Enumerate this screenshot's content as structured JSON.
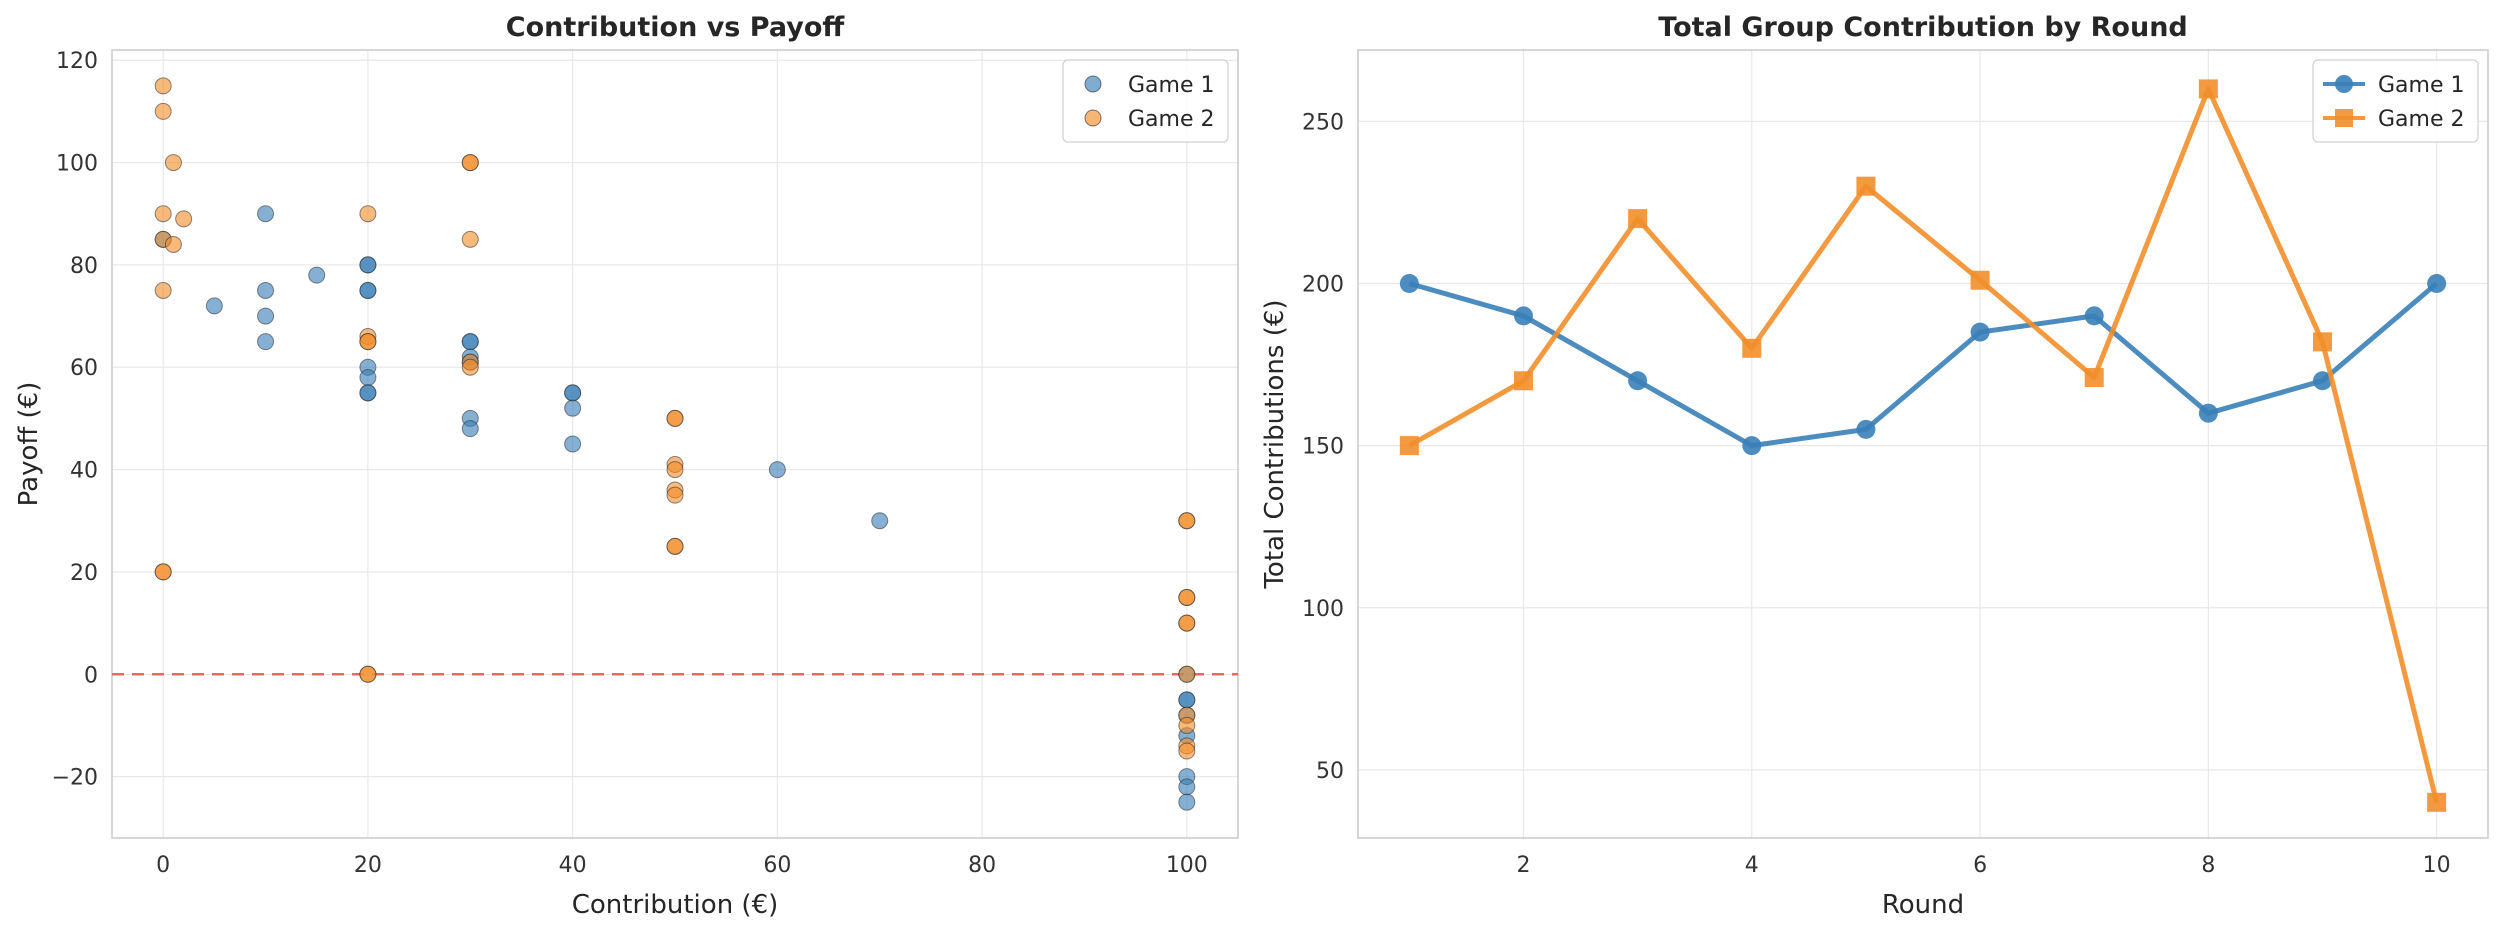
{
  "chart_data": [
    {
      "type": "scatter",
      "title": "Contribution vs Payoff",
      "xlabel": "Contribution (€)",
      "ylabel": "Payoff (€)",
      "xlim": [
        -5,
        105
      ],
      "ylim": [
        -32,
        122
      ],
      "xticks": [
        0,
        20,
        40,
        60,
        80,
        100
      ],
      "yticks": [
        -20,
        0,
        20,
        40,
        60,
        80,
        100,
        120
      ],
      "grid": true,
      "legend_position": "top-right",
      "reference_line": {
        "y": 0,
        "style": "dashed",
        "color": "#e8504a"
      },
      "series": [
        {
          "name": "Game 1",
          "color": "#3a80b8",
          "points": [
            [
              0,
              85
            ],
            [
              5,
              72
            ],
            [
              10,
              90
            ],
            [
              10,
              75
            ],
            [
              10,
              70
            ],
            [
              10,
              65
            ],
            [
              15,
              78
            ],
            [
              20,
              80
            ],
            [
              20,
              80
            ],
            [
              20,
              75
            ],
            [
              20,
              75
            ],
            [
              20,
              60
            ],
            [
              20,
              58
            ],
            [
              20,
              55
            ],
            [
              20,
              55
            ],
            [
              30,
              65
            ],
            [
              30,
              65
            ],
            [
              30,
              62
            ],
            [
              30,
              61
            ],
            [
              30,
              50
            ],
            [
              30,
              48
            ],
            [
              40,
              55
            ],
            [
              40,
              55
            ],
            [
              40,
              52
            ],
            [
              40,
              45
            ],
            [
              60,
              40
            ],
            [
              70,
              30
            ],
            [
              100,
              0
            ],
            [
              100,
              -5
            ],
            [
              100,
              -5
            ],
            [
              100,
              -8
            ],
            [
              100,
              -12
            ],
            [
              100,
              -20
            ],
            [
              100,
              -22
            ],
            [
              100,
              -25
            ]
          ]
        },
        {
          "name": "Game 2",
          "color": "#f28e2b",
          "points": [
            [
              0,
              115
            ],
            [
              0,
              110
            ],
            [
              1,
              100
            ],
            [
              0,
              90
            ],
            [
              2,
              89
            ],
            [
              0,
              85
            ],
            [
              1,
              84
            ],
            [
              0,
              75
            ],
            [
              0,
              20
            ],
            [
              0,
              20
            ],
            [
              20,
              90
            ],
            [
              20,
              66
            ],
            [
              20,
              65
            ],
            [
              20,
              65
            ],
            [
              20,
              0
            ],
            [
              20,
              0
            ],
            [
              30,
              100
            ],
            [
              30,
              100
            ],
            [
              30,
              85
            ],
            [
              30,
              61
            ],
            [
              30,
              60
            ],
            [
              50,
              50
            ],
            [
              50,
              50
            ],
            [
              50,
              41
            ],
            [
              50,
              40
            ],
            [
              50,
              36
            ],
            [
              50,
              35
            ],
            [
              50,
              25
            ],
            [
              50,
              25
            ],
            [
              100,
              30
            ],
            [
              100,
              30
            ],
            [
              100,
              15
            ],
            [
              100,
              15
            ],
            [
              100,
              10
            ],
            [
              100,
              10
            ],
            [
              100,
              0
            ],
            [
              100,
              -8
            ],
            [
              100,
              -10
            ],
            [
              100,
              -14
            ],
            [
              100,
              -15
            ]
          ]
        }
      ]
    },
    {
      "type": "line",
      "title": "Total Group Contribution by Round",
      "xlabel": "Round",
      "ylabel": "Total Contributions (€)",
      "xlim": [
        0.55,
        10.45
      ],
      "ylim": [
        29,
        272
      ],
      "xticks": [
        2,
        4,
        6,
        8,
        10
      ],
      "yticks": [
        50,
        100,
        150,
        200,
        250
      ],
      "grid": true,
      "legend_position": "top-right",
      "x": [
        1,
        2,
        3,
        4,
        5,
        6,
        7,
        8,
        9,
        10
      ],
      "series": [
        {
          "name": "Game 1",
          "marker": "circle",
          "color": "#3a80b8",
          "values": [
            200,
            190,
            170,
            150,
            155,
            185,
            190,
            160,
            170,
            200
          ]
        },
        {
          "name": "Game 2",
          "marker": "square",
          "color": "#f28e2b",
          "values": [
            150,
            170,
            220,
            180,
            230,
            201,
            171,
            260,
            182,
            40
          ]
        }
      ]
    }
  ]
}
